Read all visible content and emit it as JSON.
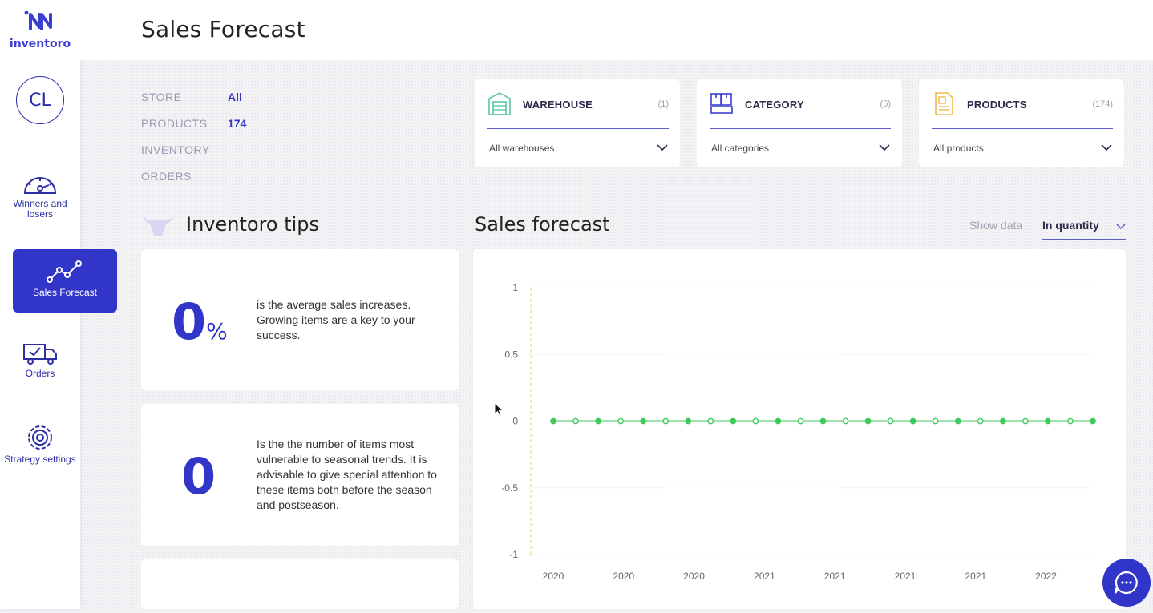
{
  "sidebar": {
    "logo_text": "inventoro",
    "avatar_initials": "CL",
    "items": [
      {
        "label": "Winners and losers"
      },
      {
        "label": "Sales Forecast"
      },
      {
        "label": "Orders"
      },
      {
        "label": "Strategy settings"
      }
    ]
  },
  "header": {
    "title": "Sales Forecast"
  },
  "summary": {
    "rows": [
      {
        "label": "STORE",
        "value": "All"
      },
      {
        "label": "PRODUCTS",
        "value": "174"
      },
      {
        "label": "INVENTORY",
        "value": ""
      },
      {
        "label": "ORDERS",
        "value": ""
      }
    ]
  },
  "filters": [
    {
      "title": "WAREHOUSE",
      "count": "(1)",
      "selected": "All warehouses"
    },
    {
      "title": "CATEGORY",
      "count": "(5)",
      "selected": "All categories"
    },
    {
      "title": "PRODUCTS",
      "count": "(174)",
      "selected": "All products"
    }
  ],
  "tips": {
    "title": "Inventoro tips",
    "cards": [
      {
        "value": "0",
        "unit": "%",
        "text": "is the average sales increases. Growing items are a key to your success."
      },
      {
        "value": "0",
        "unit": "",
        "text": "Is the the number of items most vulnerable to seasonal trends. It is advisable to give special attention to these items both before the season and postseason."
      }
    ]
  },
  "forecast": {
    "title": "Sales forecast",
    "show_data_label": "Show data",
    "show_data_value": "In quantity"
  },
  "chart_data": {
    "type": "line",
    "y_ticks": [
      "1",
      "0.5",
      "0",
      "-0.5",
      "-1"
    ],
    "ylim": [
      -1,
      1
    ],
    "x_tick_labels": [
      "2020",
      "2020",
      "2020",
      "2021",
      "2021",
      "2021",
      "2021",
      "2022"
    ],
    "series": [
      {
        "values": [
          0,
          0,
          0,
          0,
          0,
          0,
          0,
          0,
          0,
          0,
          0,
          0,
          0,
          0,
          0,
          0,
          0,
          0,
          0,
          0,
          0,
          0,
          0,
          0,
          0
        ]
      }
    ],
    "grid": true,
    "colors": {
      "line": "#3ec95a",
      "marker_filled": "#3ec95a",
      "marker_hollow": "#ffffff",
      "ref_line": "#e8e8a0"
    }
  },
  "colors": {
    "accent": "#3236c8"
  }
}
